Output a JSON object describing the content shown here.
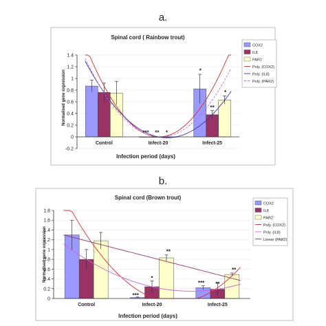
{
  "chart_data": [
    {
      "panel_label": "a.",
      "type": "bar",
      "title": "Spinal cord ( Rainbow trout)",
      "xlabel": "Infection period (days)",
      "ylabel": "Normalised gene expression",
      "ylim": [
        -0.2,
        1.4
      ],
      "yticks": [
        "-0.2",
        "0",
        "0.2",
        "0.4",
        "0.6",
        "0.8",
        "1",
        "1.2",
        "1.4"
      ],
      "categories": [
        "Control",
        "Infect-20",
        "Infect-25"
      ],
      "series": [
        {
          "name": "COX2",
          "color": "#9999ff",
          "values": [
            0.87,
            0.0,
            0.82
          ],
          "errors": [
            0.1,
            0.0,
            0.25
          ]
        },
        {
          "name": "IL8",
          "color": "#993366",
          "values": [
            0.76,
            0.0,
            0.38
          ],
          "errors": [
            0.16,
            0.0,
            0.07
          ]
        },
        {
          "name": "PAR2",
          "color": "#ffffcc",
          "values": [
            0.75,
            0.0,
            0.63
          ],
          "errors": [
            0.2,
            0.0,
            0.07
          ]
        }
      ],
      "trendlines": [
        {
          "name": "Poly. (COX2)",
          "kind": "poly",
          "series_index": 0,
          "color": "#cc3333",
          "dash": ""
        },
        {
          "name": "Poly. (IL8)",
          "kind": "poly",
          "series_index": 1,
          "color": "#3333aa",
          "dash": ""
        },
        {
          "name": "Poly. (PAR2)",
          "kind": "poly",
          "series_index": 2,
          "color": "#cc66cc",
          "dash": "3,2"
        }
      ],
      "annotations": [
        {
          "text": "***",
          "x": 1.77,
          "y": 0.04
        },
        {
          "text": "**",
          "x": 1.98,
          "y": 0.04
        },
        {
          "text": "*",
          "x": 2.16,
          "y": 0.04
        },
        {
          "text": "*",
          "x": 2.78,
          "y": 1.1
        },
        {
          "text": "**",
          "x": 3.0,
          "y": 0.47
        },
        {
          "text": "*",
          "x": 3.24,
          "y": 0.73
        }
      ],
      "legend_position": "right"
    },
    {
      "panel_label": "b.",
      "type": "bar",
      "title": "Spinal cord (Brown trout)",
      "xlabel": "Infection period (days)",
      "ylabel": "Normalised gene expression",
      "ylim": [
        0,
        1.8
      ],
      "yticks": [
        "0",
        "0.2",
        "0.4",
        "0.6",
        "0.8",
        "1",
        "1.2",
        "1.4",
        "1.6",
        "1.8"
      ],
      "categories": [
        "Control",
        "Infect-20",
        "Infect-25"
      ],
      "series": [
        {
          "name": "COX2",
          "color": "#9999ff",
          "values": [
            1.3,
            0.02,
            0.22
          ],
          "errors": [
            0.3,
            0.01,
            0.04
          ]
        },
        {
          "name": "IL8",
          "color": "#993366",
          "values": [
            0.8,
            0.24,
            0.19
          ],
          "errors": [
            0.2,
            0.12,
            0.13
          ]
        },
        {
          "name": "PAR2",
          "color": "#ffffcc",
          "values": [
            1.18,
            0.83,
            0.49
          ],
          "errors": [
            0.17,
            0.06,
            0.03
          ]
        }
      ],
      "trendlines": [
        {
          "name": "Poly. (COX2)",
          "kind": "poly",
          "series_index": 0,
          "color": "#cc3333",
          "dash": ""
        },
        {
          "name": "Poly. (IL8)",
          "kind": "poly",
          "series_index": 1,
          "color": "#cc66cc",
          "dash": ""
        },
        {
          "name": "Linear (PAR2)",
          "kind": "linear",
          "series_index": 2,
          "color": "#993366",
          "dash": ""
        }
      ],
      "annotations": [
        {
          "text": "***",
          "x": 1.75,
          "y": 0.03
        },
        {
          "text": "*",
          "x": 2.0,
          "y": 0.38
        },
        {
          "text": "**",
          "x": 2.25,
          "y": 0.92
        },
        {
          "text": "***",
          "x": 2.75,
          "y": 0.28
        },
        {
          "text": "**",
          "x": 3.0,
          "y": 0.26
        },
        {
          "text": "**",
          "x": 3.25,
          "y": 0.55
        }
      ],
      "legend_position": "right"
    }
  ]
}
